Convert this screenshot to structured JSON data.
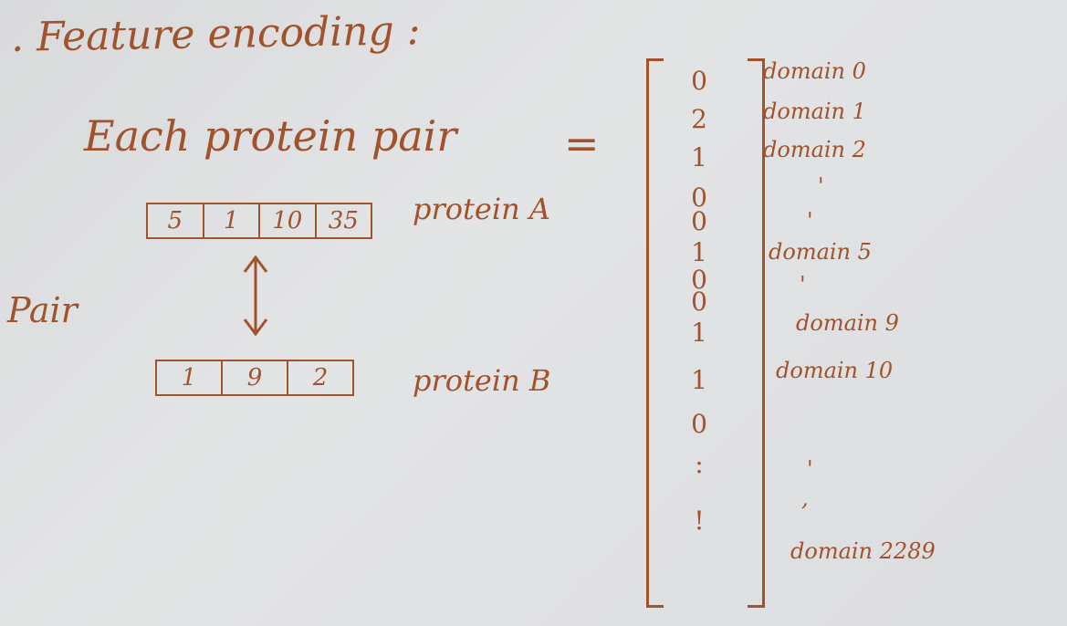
{
  "title": ". Feature encoding :",
  "pair_eq": "Each protein pair",
  "eq_sign": "=",
  "pair_label": "Pair",
  "protein_a": {
    "label": "protein A",
    "cells": [
      "5",
      "1",
      "10",
      "35"
    ]
  },
  "protein_b": {
    "label": "protein B",
    "cells": [
      "1",
      "9",
      "2"
    ]
  },
  "vector": {
    "values": [
      "0",
      "2",
      "1",
      "0",
      "0",
      "1",
      "0",
      "0",
      "1",
      "1",
      "0",
      ":",
      "!"
    ],
    "domains": [
      "domain 0",
      "domain 1",
      "domain 2",
      "'",
      "'",
      "domain 5",
      "'",
      "domain 9",
      "domain 10",
      "'",
      ",",
      "domain 2289"
    ]
  }
}
